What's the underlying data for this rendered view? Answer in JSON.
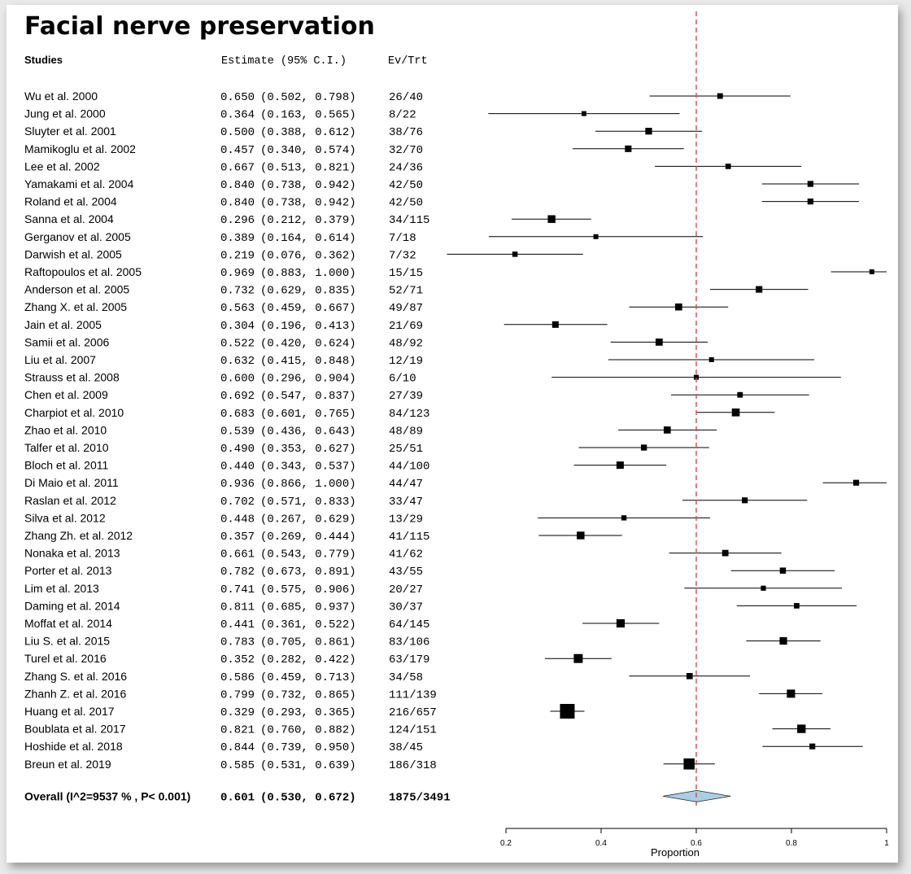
{
  "chart_data": {
    "type": "forest",
    "title": "Facial nerve preservation",
    "headers": {
      "studies": "Studies",
      "estimate": "Estimate (95% C.I.)",
      "events": "Ev/Trt"
    },
    "xlabel": "Proportion",
    "xlim": [
      0.2,
      1.0
    ],
    "xticks": [
      0.2,
      0.4,
      0.6,
      0.8,
      1
    ],
    "tick_labels": [
      "0.2",
      "0.4",
      "0.6",
      "0.8",
      "1"
    ],
    "reference_line": 0.6,
    "studies": [
      {
        "name": "Wu et al. 2000",
        "estimate": 0.65,
        "lower": 0.502,
        "upper": 0.798,
        "est_text": "0.650",
        "ci_text": "(0.502, 0.798)",
        "events": "26/40",
        "n": 40
      },
      {
        "name": "Jung et al. 2000",
        "estimate": 0.364,
        "lower": 0.163,
        "upper": 0.565,
        "est_text": "0.364",
        "ci_text": "(0.163, 0.565)",
        "events": "8/22",
        "n": 22
      },
      {
        "name": "Sluyter et al. 2001",
        "estimate": 0.5,
        "lower": 0.388,
        "upper": 0.612,
        "est_text": "0.500",
        "ci_text": "(0.388, 0.612)",
        "events": "38/76",
        "n": 76
      },
      {
        "name": "Mamikoglu et al. 2002",
        "estimate": 0.457,
        "lower": 0.34,
        "upper": 0.574,
        "est_text": "0.457",
        "ci_text": "(0.340, 0.574)",
        "events": "32/70",
        "n": 70
      },
      {
        "name": "Lee et al. 2002",
        "estimate": 0.667,
        "lower": 0.513,
        "upper": 0.821,
        "est_text": "0.667",
        "ci_text": "(0.513, 0.821)",
        "events": "24/36",
        "n": 36
      },
      {
        "name": "Yamakami et al. 2004",
        "estimate": 0.84,
        "lower": 0.738,
        "upper": 0.942,
        "est_text": "0.840",
        "ci_text": "(0.738, 0.942)",
        "events": "42/50",
        "n": 50
      },
      {
        "name": "Roland et al. 2004",
        "estimate": 0.84,
        "lower": 0.738,
        "upper": 0.942,
        "est_text": "0.840",
        "ci_text": "(0.738, 0.942)",
        "events": "42/50",
        "n": 50
      },
      {
        "name": "Sanna et al. 2004",
        "estimate": 0.296,
        "lower": 0.212,
        "upper": 0.379,
        "est_text": "0.296",
        "ci_text": "(0.212, 0.379)",
        "events": "34/115",
        "n": 115
      },
      {
        "name": "Gerganov et al. 2005",
        "estimate": 0.389,
        "lower": 0.164,
        "upper": 0.614,
        "est_text": "0.389",
        "ci_text": "(0.164, 0.614)",
        "events": "7/18",
        "n": 18
      },
      {
        "name": "Darwish et al.  2005",
        "estimate": 0.219,
        "lower": 0.076,
        "upper": 0.362,
        "est_text": "0.219",
        "ci_text": "(0.076, 0.362)",
        "events": "7/32",
        "n": 32
      },
      {
        "name": "Raftopoulos et al. 2005",
        "estimate": 0.969,
        "lower": 0.883,
        "upper": 1.0,
        "est_text": "0.969",
        "ci_text": "(0.883, 1.000)",
        "events": "15/15",
        "n": 15
      },
      {
        "name": "Anderson et al. 2005",
        "estimate": 0.732,
        "lower": 0.629,
        "upper": 0.835,
        "est_text": "0.732",
        "ci_text": "(0.629, 0.835)",
        "events": "52/71",
        "n": 71
      },
      {
        "name": "Zhang X. et al. 2005",
        "estimate": 0.563,
        "lower": 0.459,
        "upper": 0.667,
        "est_text": "0.563",
        "ci_text": "(0.459, 0.667)",
        "events": "49/87",
        "n": 87
      },
      {
        "name": "Jain et al. 2005",
        "estimate": 0.304,
        "lower": 0.196,
        "upper": 0.413,
        "est_text": "0.304",
        "ci_text": "(0.196, 0.413)",
        "events": "21/69",
        "n": 69
      },
      {
        "name": "Samii et al. 2006",
        "estimate": 0.522,
        "lower": 0.42,
        "upper": 0.624,
        "est_text": "0.522",
        "ci_text": "(0.420, 0.624)",
        "events": "48/92",
        "n": 92
      },
      {
        "name": "Liu et al. 2007",
        "estimate": 0.632,
        "lower": 0.415,
        "upper": 0.848,
        "est_text": "0.632",
        "ci_text": "(0.415, 0.848)",
        "events": "12/19",
        "n": 19
      },
      {
        "name": "Strauss et al. 2008",
        "estimate": 0.6,
        "lower": 0.296,
        "upper": 0.904,
        "est_text": "0.600",
        "ci_text": "(0.296, 0.904)",
        "events": "6/10",
        "n": 10
      },
      {
        "name": "Chen et al. 2009",
        "estimate": 0.692,
        "lower": 0.547,
        "upper": 0.837,
        "est_text": "0.692",
        "ci_text": "(0.547, 0.837)",
        "events": "27/39",
        "n": 39
      },
      {
        "name": "Charpiot et al. 2010",
        "estimate": 0.683,
        "lower": 0.601,
        "upper": 0.765,
        "est_text": "0.683",
        "ci_text": "(0.601, 0.765)",
        "events": "84/123",
        "n": 123
      },
      {
        "name": "Zhao et al. 2010",
        "estimate": 0.539,
        "lower": 0.436,
        "upper": 0.643,
        "est_text": "0.539",
        "ci_text": "(0.436, 0.643)",
        "events": "48/89",
        "n": 89
      },
      {
        "name": "Talfer et al. 2010",
        "estimate": 0.49,
        "lower": 0.353,
        "upper": 0.627,
        "est_text": "0.490",
        "ci_text": "(0.353, 0.627)",
        "events": "25/51",
        "n": 51
      },
      {
        "name": "Bloch et al. 2011",
        "estimate": 0.44,
        "lower": 0.343,
        "upper": 0.537,
        "est_text": "0.440",
        "ci_text": "(0.343, 0.537)",
        "events": "44/100",
        "n": 100
      },
      {
        "name": "Di Maio et al. 2011",
        "estimate": 0.936,
        "lower": 0.866,
        "upper": 1.0,
        "est_text": "0.936",
        "ci_text": "(0.866, 1.000)",
        "events": "44/47",
        "n": 47
      },
      {
        "name": "Raslan et al. 2012",
        "estimate": 0.702,
        "lower": 0.571,
        "upper": 0.833,
        "est_text": "0.702",
        "ci_text": "(0.571, 0.833)",
        "events": "33/47",
        "n": 47
      },
      {
        "name": "Silva et al. 2012",
        "estimate": 0.448,
        "lower": 0.267,
        "upper": 0.629,
        "est_text": "0.448",
        "ci_text": "(0.267, 0.629)",
        "events": "13/29",
        "n": 29
      },
      {
        "name": "Zhang Zh. et al. 2012",
        "estimate": 0.357,
        "lower": 0.269,
        "upper": 0.444,
        "est_text": "0.357",
        "ci_text": "(0.269, 0.444)",
        "events": "41/115",
        "n": 115
      },
      {
        "name": "Nonaka et al. 2013",
        "estimate": 0.661,
        "lower": 0.543,
        "upper": 0.779,
        "est_text": "0.661",
        "ci_text": "(0.543, 0.779)",
        "events": "41/62",
        "n": 62
      },
      {
        "name": "Porter et al. 2013",
        "estimate": 0.782,
        "lower": 0.673,
        "upper": 0.891,
        "est_text": "0.782",
        "ci_text": "(0.673, 0.891)",
        "events": "43/55",
        "n": 55
      },
      {
        "name": "Lim et al. 2013",
        "estimate": 0.741,
        "lower": 0.575,
        "upper": 0.906,
        "est_text": "0.741",
        "ci_text": "(0.575, 0.906)",
        "events": "20/27",
        "n": 27
      },
      {
        "name": "Daming et al. 2014",
        "estimate": 0.811,
        "lower": 0.685,
        "upper": 0.937,
        "est_text": "0.811",
        "ci_text": "(0.685, 0.937)",
        "events": "30/37",
        "n": 37
      },
      {
        "name": "Moffat et al. 2014",
        "estimate": 0.441,
        "lower": 0.361,
        "upper": 0.522,
        "est_text": "0.441",
        "ci_text": "(0.361, 0.522)",
        "events": "64/145",
        "n": 145
      },
      {
        "name": "Liu S. et al. 2015",
        "estimate": 0.783,
        "lower": 0.705,
        "upper": 0.861,
        "est_text": "0.783",
        "ci_text": "(0.705, 0.861)",
        "events": "83/106",
        "n": 106
      },
      {
        "name": "Turel et al.  2016",
        "estimate": 0.352,
        "lower": 0.282,
        "upper": 0.422,
        "est_text": "0.352",
        "ci_text": "(0.282, 0.422)",
        "events": "63/179",
        "n": 179
      },
      {
        "name": "Zhang S. et al. 2016",
        "estimate": 0.586,
        "lower": 0.459,
        "upper": 0.713,
        "est_text": "0.586",
        "ci_text": "(0.459, 0.713)",
        "events": "34/58",
        "n": 58
      },
      {
        "name": "Zhanh Z. et al. 2016",
        "estimate": 0.799,
        "lower": 0.732,
        "upper": 0.865,
        "est_text": "0.799",
        "ci_text": "(0.732, 0.865)",
        "events": "111/139",
        "n": 139
      },
      {
        "name": "Huang et al. 2017",
        "estimate": 0.329,
        "lower": 0.293,
        "upper": 0.365,
        "est_text": "0.329",
        "ci_text": "(0.293, 0.365)",
        "events": "216/657",
        "n": 657
      },
      {
        "name": "Boublata et al. 2017",
        "estimate": 0.821,
        "lower": 0.76,
        "upper": 0.882,
        "est_text": "0.821",
        "ci_text": "(0.760, 0.882)",
        "events": "124/151",
        "n": 151
      },
      {
        "name": "Hoshide et al. 2018",
        "estimate": 0.844,
        "lower": 0.739,
        "upper": 0.95,
        "est_text": "0.844",
        "ci_text": "(0.739, 0.950)",
        "events": "38/45",
        "n": 45
      },
      {
        "name": "Breun et al. 2019",
        "estimate": 0.585,
        "lower": 0.531,
        "upper": 0.639,
        "est_text": "0.585",
        "ci_text": "(0.531, 0.639)",
        "events": "186/318",
        "n": 318
      }
    ],
    "overall": {
      "label": "Overall (I^2=9537 % , P< 0.001)",
      "estimate": 0.601,
      "lower": 0.53,
      "upper": 0.672,
      "est_text": "0.601",
      "ci_text": "(0.530, 0.672)",
      "events": "1875/3491"
    },
    "colors": {
      "reference_line": "#e0464a",
      "diamond_fill": "#a9cfe4",
      "marker": "#000000"
    }
  }
}
